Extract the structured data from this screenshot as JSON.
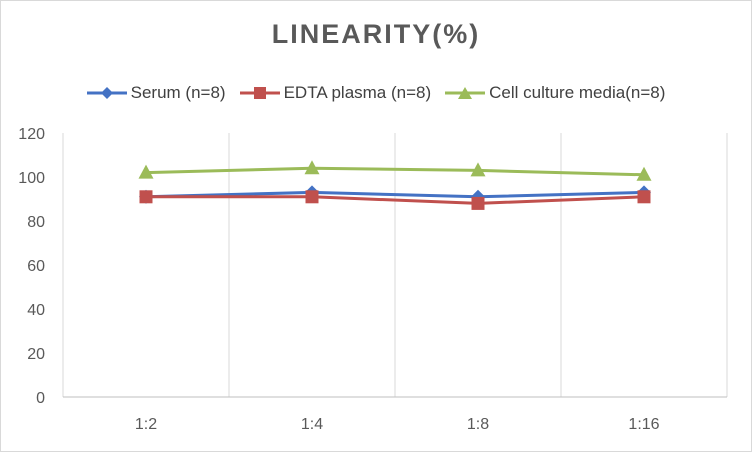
{
  "chart_data": {
    "type": "line",
    "title": "LINEARITY(%)",
    "xlabel": "",
    "ylabel": "",
    "categories": [
      "1:2",
      "1:4",
      "1:8",
      "1:16"
    ],
    "ylim": [
      0,
      120
    ],
    "yticks": [
      0,
      20,
      40,
      60,
      80,
      100,
      120
    ],
    "grid": "vertical",
    "legend_position": "top",
    "series": [
      {
        "name": "Serum (n=8)",
        "values": [
          91,
          93,
          91,
          93
        ],
        "color": "#4472c4",
        "marker": "diamond"
      },
      {
        "name": "EDTA plasma (n=8)",
        "values": [
          91,
          91,
          88,
          91
        ],
        "color": "#c0504d",
        "marker": "square"
      },
      {
        "name": "Cell culture media(n=8)",
        "values": [
          102,
          104,
          103,
          101
        ],
        "color": "#9bbb59",
        "marker": "triangle"
      }
    ]
  }
}
